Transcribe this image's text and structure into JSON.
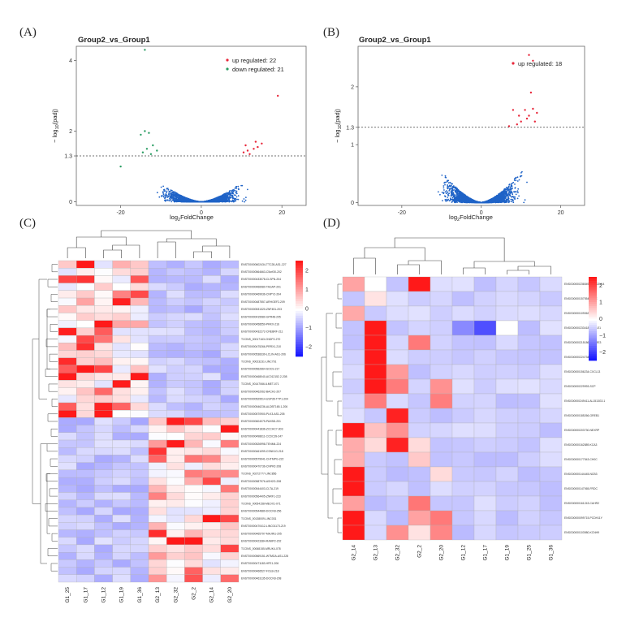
{
  "chart_data": [
    {
      "panel": "(A)",
      "type": "scatter",
      "title": "Group2_vs_Group1",
      "xlabel": "log2FoldChange",
      "ylabel": "-log10(padj)",
      "xticks": [
        "-20",
        "0",
        "20"
      ],
      "yticks": [
        "0",
        "1.3",
        "2",
        "4"
      ],
      "xlim": [
        -31,
        26
      ],
      "ylim": [
        -0.1,
        4.4
      ],
      "threshold": 1.3,
      "legend": [
        "up regulated: 22",
        "down regulated: 21"
      ],
      "colors": {
        "up": "#e8273a",
        "down": "#2a9d63",
        "ns": "#1f63c7"
      },
      "up_points": [
        [
          19,
          3.0
        ],
        [
          11,
          1.6
        ],
        [
          13,
          1.5
        ],
        [
          14,
          1.55
        ],
        [
          10.5,
          1.4
        ],
        [
          12,
          1.35
        ],
        [
          15,
          1.65
        ],
        [
          13.5,
          1.7
        ],
        [
          11.5,
          1.45
        ]
      ],
      "down_points": [
        [
          -14,
          4.3
        ],
        [
          -14,
          2.0
        ],
        [
          -13,
          1.95
        ],
        [
          -15,
          1.9
        ],
        [
          -12,
          1.6
        ],
        [
          -13.5,
          1.5
        ],
        [
          -11,
          1.45
        ],
        [
          -14.5,
          1.4
        ],
        [
          -12.5,
          1.35
        ],
        [
          -20,
          1.0
        ]
      ]
    },
    {
      "panel": "(B)",
      "type": "scatter",
      "title": "Group2_vs_Group1",
      "xlabel": "log2FoldChange",
      "ylabel": "-log10(padj)",
      "xticks": [
        "-20",
        "0",
        "20"
      ],
      "yticks": [
        "0",
        "1",
        "1.3",
        "2"
      ],
      "xlim": [
        -31,
        26
      ],
      "ylim": [
        -0.05,
        2.7
      ],
      "threshold": 1.3,
      "legend": [
        "up regulated: 18"
      ],
      "colors": {
        "up": "#e8273a",
        "ns": "#1f63c7"
      },
      "up_points": [
        [
          12,
          2.55
        ],
        [
          13,
          2.45
        ],
        [
          12.5,
          1.9
        ],
        [
          11,
          1.6
        ],
        [
          13,
          1.62
        ],
        [
          12,
          1.5
        ],
        [
          14,
          1.55
        ],
        [
          10,
          1.4
        ],
        [
          9,
          1.35
        ],
        [
          8,
          1.6
        ],
        [
          9.5,
          1.5
        ],
        [
          11.5,
          1.45
        ],
        [
          13.5,
          1.4
        ],
        [
          7,
          1.32
        ]
      ]
    },
    {
      "panel": "(C)",
      "type": "heatmap",
      "columns": [
        "G1_25",
        "G1_17",
        "G1_12",
        "G1_19",
        "G1_36",
        "G2_13",
        "G2_32",
        "G2_2",
        "G2_14",
        "G2_20"
      ],
      "colorbar_ticks": [
        "2",
        "1",
        "0",
        "−1",
        "−2"
      ],
      "rows": [
        "ENST00000602434-TTC28-AS1-227",
        "ENST00000564663-C5orf30-202",
        "ENST00000433078-CLSPN-204",
        "ENST00000466980-TAGAP-201",
        "ENST00000469936-CNPY2-204",
        "ENST00000487557-ARHGEF2-209",
        "ENST00000531320-ZNF451-203",
        "ENST00000415980-GPR48-205",
        "ENST00000458550-PRKX-216",
        "ENST00000432272-CREBRF-211",
        "TCONS_00017163-CNDP2-270",
        "ENST00000475266-PRRX1-210",
        "ENST00000538339-LCLIN-AS1-206",
        "TCONS_00023231-LINC791",
        "ENST00000562664-SOCS-217",
        "ENST00000468040-AC012152.2-208",
        "TCONS_00147066-ILMET-071",
        "ENST00000462062-BACH1-207",
        "ENST00000529514-USP35-TTP1-204",
        "ENST00000546236-ALDBT165.1-206",
        "ENST00000570900-PLK3-AS1-205",
        "ENST00000604075-PAXBD-201",
        "ENST00000441836-ZCCHC7-303",
        "ENST00000498611-CCDC39-247",
        "ENST00000526998-TENM4-224",
        "ENST00000461099-CSNK1G-218",
        "ENST00000579941-CHTMPG-222",
        "ENST00000470736-CNPR2-208",
        "TCONS_00272777-LINC856",
        "ENST00000587976-ASH2O-208",
        "ENST00000544403-CLTA-219",
        "ENST00000564405-ZNRF1-223",
        "TCONS_00054158-MEOX1-071",
        "ENST00000544889-DOCK8-256",
        "TCONS_00138009-LINC031",
        "ENST00000470412-LINC01173-219",
        "ENST00000465797-MAJIN1-205",
        "ENST00000423384-RAMP2-202",
        "TCONS_00068155-MRUK4-078",
        "ENST00000569151-WTMDA-AS1-228",
        "ENST00000471183-HFE1-206",
        "ENST00000466527-FOLB-218",
        "ENST00000463135-DOCK8-208"
      ]
    },
    {
      "panel": "(D)",
      "type": "heatmap",
      "columns": [
        "G2_14",
        "G2_13",
        "G2_32",
        "G2_2",
        "G2_20",
        "G1_12",
        "G1_17",
        "G1_19",
        "G1_25",
        "G1_36"
      ],
      "colorbar_ticks": [
        "2",
        "1",
        "0",
        "−1",
        "−2"
      ],
      "rows": [
        "ENSG00000236549-AP0021W.4",
        "ENSG00000157554-EPYC",
        "ENSG00000109062-LCP4",
        "ENSG00000233418-BTFT-E1",
        "ENSG00000215186-ADORE3",
        "ENSG00000224734-FBB",
        "ENSG00000156234-CXCL13",
        "ENSG00000229993-SCP",
        "ENSG00000249411-AL1513G3.1",
        "ENSG00000185266-GREB1",
        "ENSG00000203730-NEXRP",
        "ENSG00000162889-KCA3",
        "ENSG00000177543-CH0C",
        "ENSG00000144445-NCB3",
        "ENSG00000147065-FRDC",
        "ENSG00000161243-CAHR2",
        "ENSG00000099715-PCDH11Y",
        "ENSG00000103980-KCNH9"
      ]
    }
  ]
}
